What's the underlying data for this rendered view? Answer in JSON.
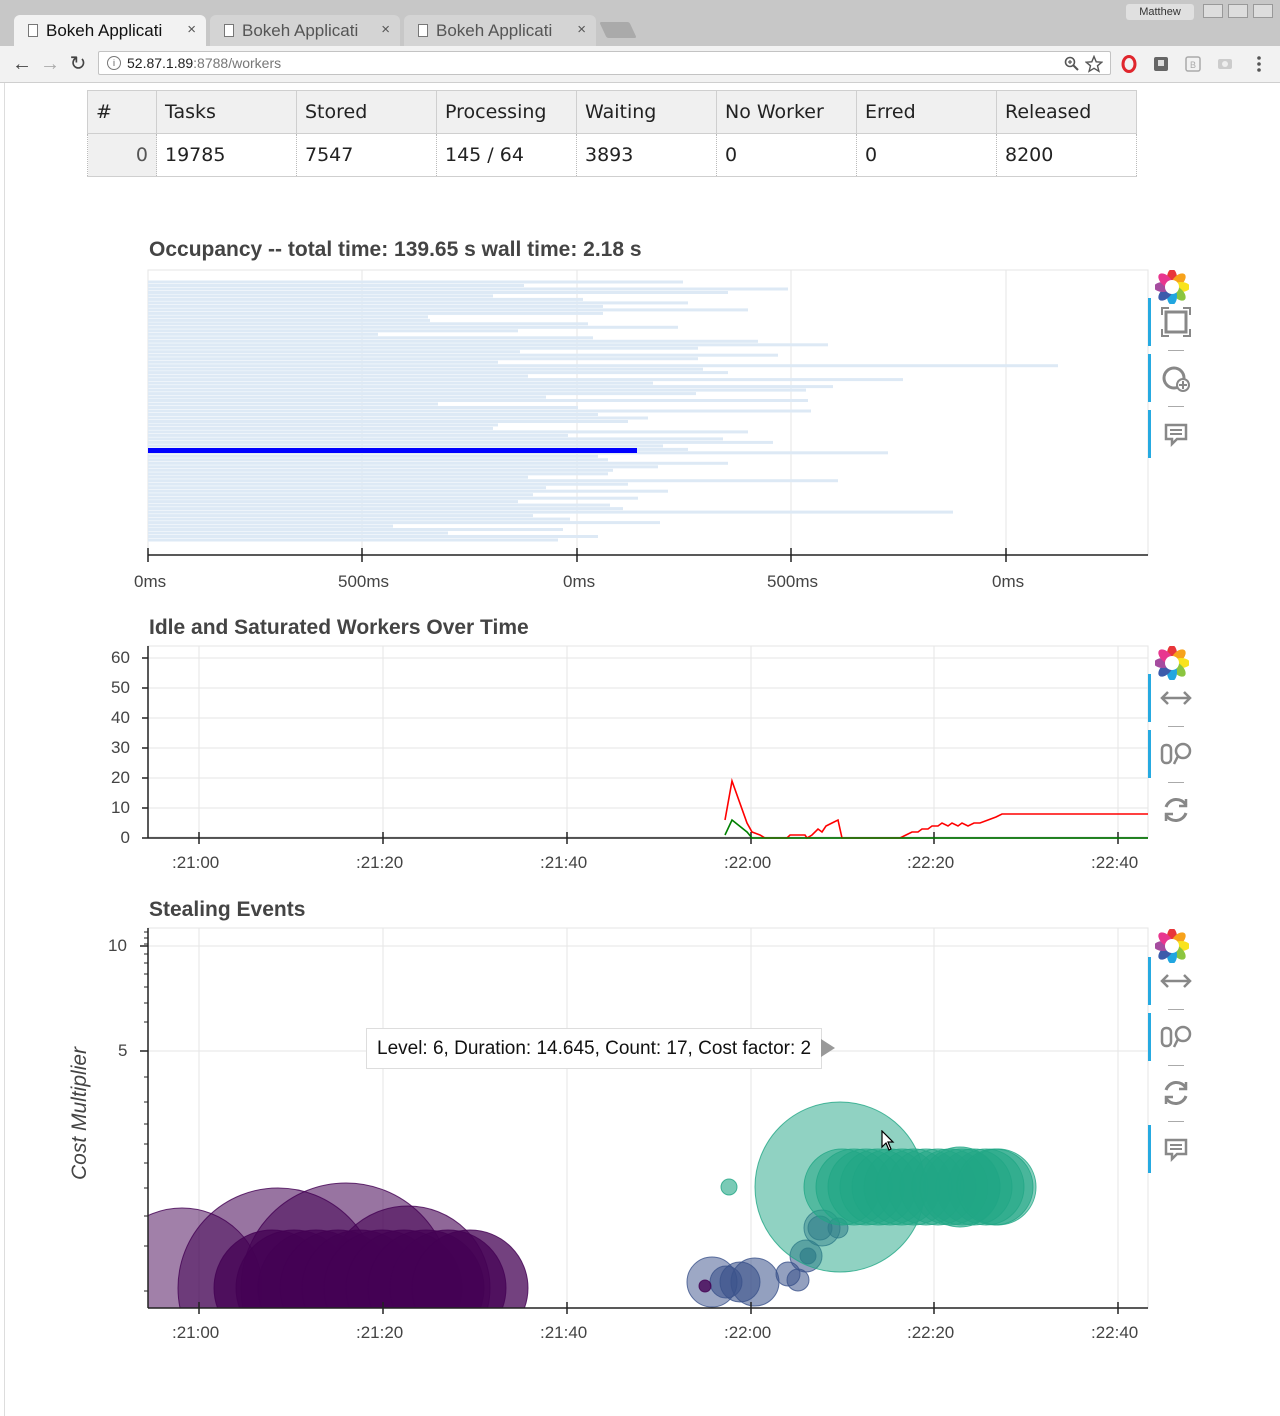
{
  "browser": {
    "tabs": [
      {
        "label": "Bokeh Applicati",
        "active": true
      },
      {
        "label": "Bokeh Applicati",
        "active": false
      },
      {
        "label": "Bokeh Applicati",
        "active": false
      }
    ],
    "close_glyph": "×",
    "profile_name": "Matthew",
    "url_host": "52.87.1.89",
    "url_rest": ":8788/workers",
    "icons": [
      "back-icon",
      "forward-icon",
      "reload-icon",
      "info-icon",
      "zoom-icon",
      "star-icon",
      "opera-icon",
      "extension-icon",
      "menu-icon"
    ]
  },
  "table": {
    "headers": [
      "#",
      "Tasks",
      "Stored",
      "Processing",
      "Waiting",
      "No Worker",
      "Erred",
      "Released"
    ],
    "rows": [
      [
        "0",
        "19785",
        "7547",
        "145 / 64",
        "3893",
        "0",
        "0",
        "8200"
      ]
    ]
  },
  "occupancy": {
    "title": "Occupancy -- total time: 139.65 s  wall time: 2.18 s",
    "x_tick_labels": [
      "0ms",
      "500ms",
      "0ms",
      "500ms",
      "0ms"
    ],
    "highlight_color": "#0000ff",
    "bar_color": "#dde9f5",
    "tools": [
      "bokeh-logo-icon",
      "box-zoom-icon",
      "wheel-zoom-icon",
      "hover-icon"
    ]
  },
  "workers_over_time": {
    "title": "Idle and Saturated Workers Over Time",
    "y_tick_labels": [
      "60",
      "50",
      "40",
      "30",
      "20",
      "10",
      "0"
    ],
    "x_tick_labels": [
      ":21:00",
      ":21:20",
      ":21:40",
      ":22:00",
      ":22:20",
      ":22:40"
    ],
    "series_colors": {
      "saturated": "#ff0000",
      "idle": "#008000"
    },
    "tools": [
      "bokeh-logo-icon",
      "xpan-icon",
      "xwheel-zoom-icon",
      "reset-icon"
    ]
  },
  "stealing": {
    "title": "Stealing Events",
    "ylabel": "Cost Multiplier",
    "y_tick_labels": [
      "10",
      "5"
    ],
    "x_tick_labels": [
      ":21:00",
      ":21:20",
      ":21:40",
      ":22:00",
      ":22:20",
      ":22:40"
    ],
    "tooltip": "Level: 6, Duration: 14.645, Count: 17, Cost factor: 2",
    "colors": {
      "level_low": "#440154",
      "level_mid": "#3b528b",
      "level_high": "#21a685"
    },
    "tools": [
      "bokeh-logo-icon",
      "xpan-icon",
      "xwheel-zoom-icon",
      "reset-icon",
      "hover-icon"
    ]
  }
}
